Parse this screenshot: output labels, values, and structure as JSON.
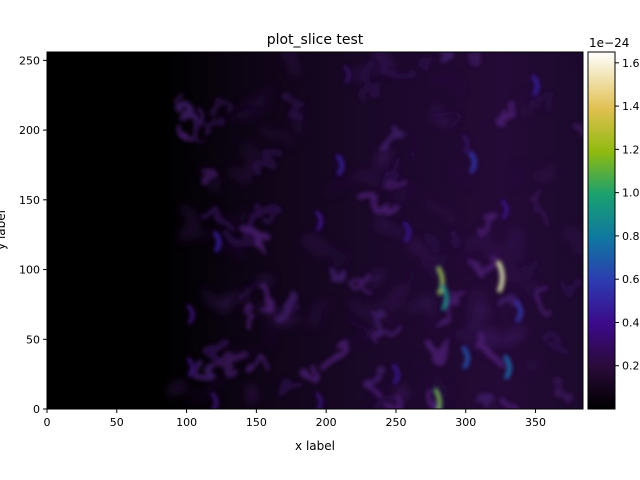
{
  "chart_data": {
    "type": "heatmap",
    "title": "plot_slice test",
    "xlabel": "x label",
    "ylabel": "y label",
    "xlim": [
      0,
      384
    ],
    "ylim": [
      0,
      256
    ],
    "xticks": [
      0,
      50,
      100,
      150,
      200,
      250,
      300,
      350
    ],
    "yticks": [
      0,
      50,
      100,
      150,
      200,
      250
    ],
    "colorbar": {
      "min": 0,
      "max": 1.65,
      "offset_label": "1e−24",
      "ticks": [
        "0.2",
        "0.4",
        "0.6",
        "0.8",
        "1.0",
        "1.2",
        "1.4",
        "1.6"
      ],
      "tick_values": [
        0.2,
        0.4,
        0.6,
        0.8,
        1.0,
        1.2,
        1.4,
        1.6
      ],
      "colormap": "gnuplot2-like (black-purple-blue-green-yellow-white)"
    },
    "field_description": "dark region for x < ~95; turbulent filaments for x > ~95",
    "bright_features": [
      {
        "x": 282,
        "y": 92,
        "value": 1.3
      },
      {
        "x": 285,
        "y": 80,
        "value": 1.0
      },
      {
        "x": 325,
        "y": 95,
        "value": 1.6
      },
      {
        "x": 280,
        "y": 5,
        "value": 1.2
      },
      {
        "x": 300,
        "y": 37,
        "value": 0.7
      },
      {
        "x": 330,
        "y": 30,
        "value": 0.8
      },
      {
        "x": 305,
        "y": 177,
        "value": 0.6
      },
      {
        "x": 338,
        "y": 70,
        "value": 0.6
      },
      {
        "x": 122,
        "y": 120,
        "value": 0.5
      },
      {
        "x": 210,
        "y": 175,
        "value": 0.5
      },
      {
        "x": 195,
        "y": 135,
        "value": 0.4
      },
      {
        "x": 258,
        "y": 127,
        "value": 0.45
      },
      {
        "x": 350,
        "y": 232,
        "value": 0.5
      },
      {
        "x": 328,
        "y": 143,
        "value": 0.4
      },
      {
        "x": 250,
        "y": 25,
        "value": 0.45
      },
      {
        "x": 103,
        "y": 30,
        "value": 0.35
      },
      {
        "x": 103,
        "y": 68,
        "value": 0.35
      },
      {
        "x": 120,
        "y": 5,
        "value": 0.35
      },
      {
        "x": 215,
        "y": 240,
        "value": 0.3
      },
      {
        "x": 195,
        "y": 5,
        "value": 0.35
      },
      {
        "x": 300,
        "y": 190,
        "value": 0.3
      },
      {
        "x": 110,
        "y": 210,
        "value": 0.25
      }
    ]
  }
}
